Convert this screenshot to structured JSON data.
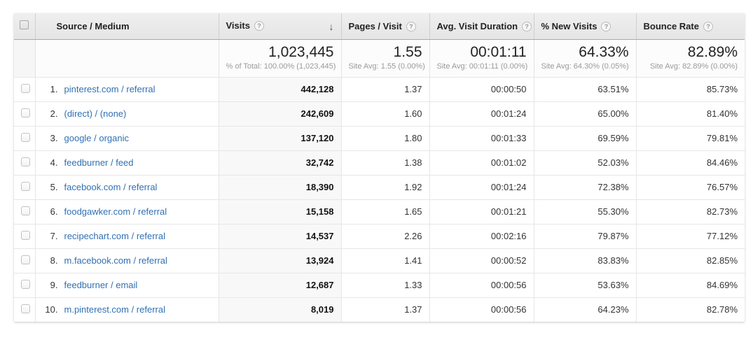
{
  "colors": {
    "link": "#3070b3",
    "header_background": "#e9e9e9",
    "sorted_column_background": "#f8f8f8",
    "muted_text": "#9a9a9a"
  },
  "icons": {
    "help": "?",
    "sort_desc": "↓"
  },
  "table": {
    "columns": [
      {
        "label": "Source / Medium"
      },
      {
        "label": "Visits"
      },
      {
        "label": "Pages / Visit"
      },
      {
        "label": "Avg. Visit Duration"
      },
      {
        "label": "% New Visits"
      },
      {
        "label": "Bounce Rate"
      }
    ],
    "sorted_column": "Visits",
    "sort_direction": "descending",
    "select_all_checked": false,
    "summary": {
      "visits": "1,023,445",
      "visits_sub": "% of Total: 100.00% (1,023,445)",
      "pages_visit": "1.55",
      "pages_visit_sub": "Site Avg: 1.55 (0.00%)",
      "duration": "00:01:11",
      "duration_sub": "Site Avg: 00:01:11 (0.00%)",
      "new_visits": "64.33%",
      "new_visits_sub": "Site Avg: 64.30% (0.05%)",
      "bounce": "82.89%",
      "bounce_sub": "Site Avg: 82.89% (0.00%)"
    },
    "rows": [
      {
        "rank": "1.",
        "source": "pinterest.com / referral",
        "visits": "442,128",
        "pages_visit": "1.37",
        "duration": "00:00:50",
        "new_visits": "63.51%",
        "bounce": "85.73%",
        "checked": false
      },
      {
        "rank": "2.",
        "source": "(direct) / (none)",
        "visits": "242,609",
        "pages_visit": "1.60",
        "duration": "00:01:24",
        "new_visits": "65.00%",
        "bounce": "81.40%",
        "checked": false
      },
      {
        "rank": "3.",
        "source": "google / organic",
        "visits": "137,120",
        "pages_visit": "1.80",
        "duration": "00:01:33",
        "new_visits": "69.59%",
        "bounce": "79.81%",
        "checked": false
      },
      {
        "rank": "4.",
        "source": "feedburner / feed",
        "visits": "32,742",
        "pages_visit": "1.38",
        "duration": "00:01:02",
        "new_visits": "52.03%",
        "bounce": "84.46%",
        "checked": false
      },
      {
        "rank": "5.",
        "source": "facebook.com / referral",
        "visits": "18,390",
        "pages_visit": "1.92",
        "duration": "00:01:24",
        "new_visits": "72.38%",
        "bounce": "76.57%",
        "checked": false
      },
      {
        "rank": "6.",
        "source": "foodgawker.com / referral",
        "visits": "15,158",
        "pages_visit": "1.65",
        "duration": "00:01:21",
        "new_visits": "55.30%",
        "bounce": "82.73%",
        "checked": false
      },
      {
        "rank": "7.",
        "source": "recipechart.com / referral",
        "visits": "14,537",
        "pages_visit": "2.26",
        "duration": "00:02:16",
        "new_visits": "79.87%",
        "bounce": "77.12%",
        "checked": false
      },
      {
        "rank": "8.",
        "source": "m.facebook.com / referral",
        "visits": "13,924",
        "pages_visit": "1.41",
        "duration": "00:00:52",
        "new_visits": "83.83%",
        "bounce": "82.85%",
        "checked": false
      },
      {
        "rank": "9.",
        "source": "feedburner / email",
        "visits": "12,687",
        "pages_visit": "1.33",
        "duration": "00:00:56",
        "new_visits": "53.63%",
        "bounce": "84.69%",
        "checked": false
      },
      {
        "rank": "10.",
        "source": "m.pinterest.com / referral",
        "visits": "8,019",
        "pages_visit": "1.37",
        "duration": "00:00:56",
        "new_visits": "64.23%",
        "bounce": "82.78%",
        "checked": false
      }
    ]
  }
}
